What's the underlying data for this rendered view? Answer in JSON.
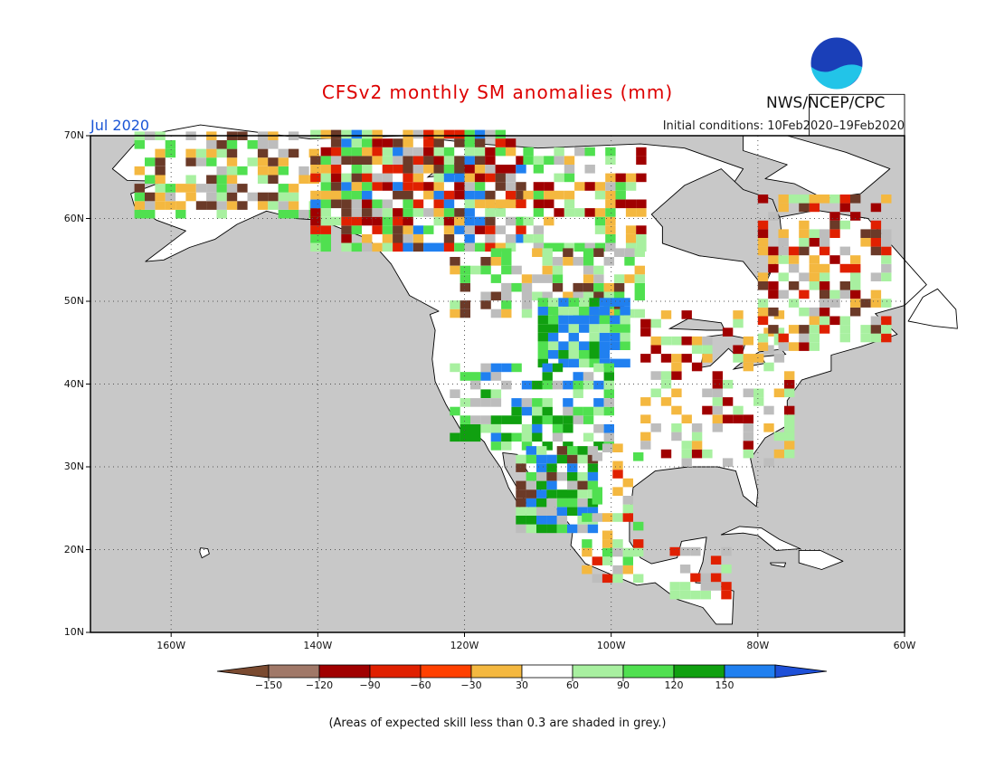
{
  "title": "CFSv2 monthly SM anomalies (mm)",
  "valid_month": "Jul 2020",
  "initial_conditions": "Initial conditions: 10Feb2020–19Feb2020",
  "agency": "NWS/NCEP/CPC",
  "logo_text": "NOAA",
  "note": "(Areas of expected skill less than 0.3 are shaded in grey.)",
  "map": {
    "lon_range": [
      -171,
      -60
    ],
    "lat_range": [
      10,
      70
    ],
    "lat_labels": [
      "10N",
      "20N",
      "30N",
      "40N",
      "50N",
      "60N",
      "70N"
    ],
    "lat_values": [
      10,
      20,
      30,
      40,
      50,
      60,
      70
    ],
    "lon_labels": [
      "160W",
      "140W",
      "120W",
      "100W",
      "80W",
      "60W"
    ],
    "lon_values": [
      -160,
      -140,
      -120,
      -100,
      -80,
      -60
    ],
    "ocean_color": "#c8c8c8",
    "land_color": "#ffffff"
  },
  "legend": {
    "labels": [
      "−150",
      "−120",
      "−90",
      "−60",
      "−30",
      "30",
      "60",
      "90",
      "120",
      "150"
    ],
    "colors": [
      "#7a4a30",
      "#a07868",
      "#a00000",
      "#e02000",
      "#ff4000",
      "#f4b840",
      "#ffffff",
      "#a8f0a0",
      "#50e050",
      "#10a010",
      "#2080f0",
      "#1e50d8"
    ]
  }
}
